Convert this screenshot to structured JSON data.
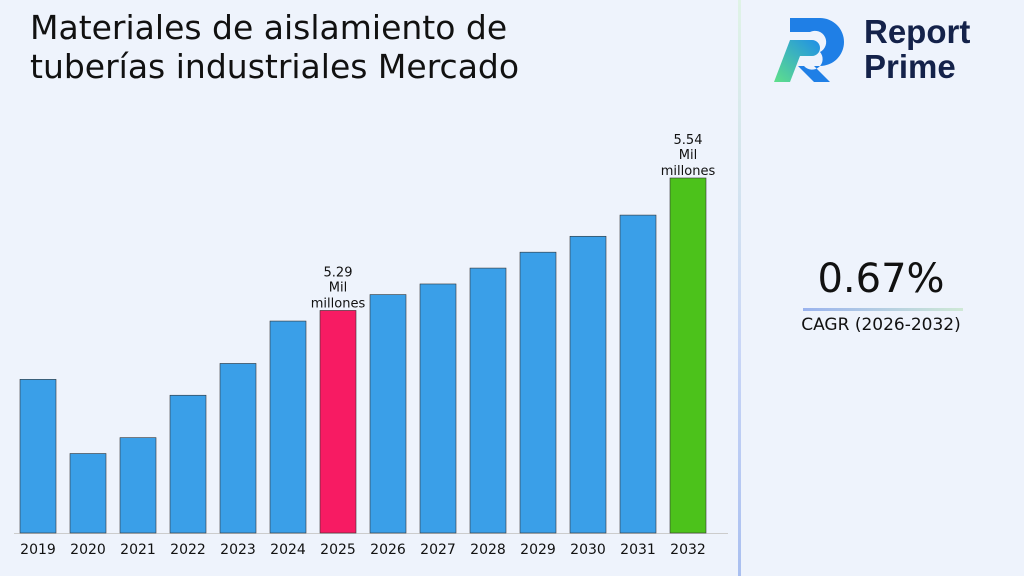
{
  "chart_data": {
    "type": "bar",
    "title": "Materiales de aislamiento de tuberías industriales Mercado",
    "categories": [
      "2019",
      "2020",
      "2021",
      "2022",
      "2023",
      "2024",
      "2025",
      "2026",
      "2027",
      "2028",
      "2029",
      "2030",
      "2031",
      "2032"
    ],
    "values": [
      5.16,
      5.02,
      5.05,
      5.13,
      5.19,
      5.27,
      5.29,
      5.32,
      5.34,
      5.37,
      5.4,
      5.43,
      5.47,
      5.54
    ],
    "ylim": [
      4.87,
      5.6
    ],
    "grid": false,
    "data_labels": [
      {
        "category": "2025",
        "lines": [
          "5.29",
          "Mil",
          "millones"
        ]
      },
      {
        "category": "2032",
        "lines": [
          "5.54",
          "Mil",
          "millones"
        ]
      }
    ],
    "colors": {
      "default": "#3a9fe8",
      "highlight_2025": "#f71b63",
      "highlight_2032": "#4cc21b"
    }
  },
  "logo": {
    "line1": "Report",
    "line2": "Prime"
  },
  "cagr": {
    "value": "0.67%",
    "label": "CAGR (2026-2032)"
  }
}
